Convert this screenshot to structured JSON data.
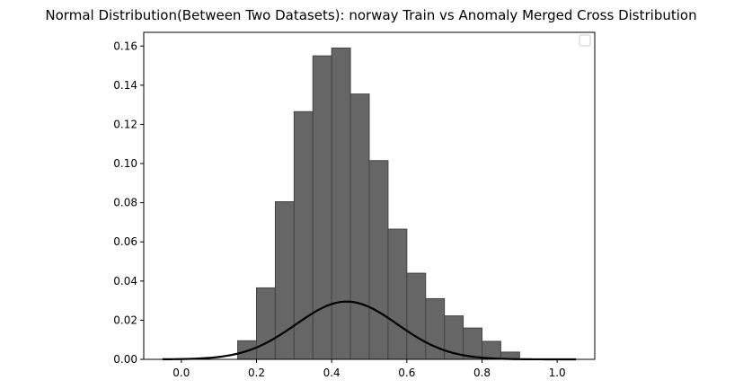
{
  "chart_data": {
    "type": "bar",
    "title": "Normal Distribution(Between Two Datasets): norway Train vs Anomaly Merged Cross Distribution",
    "xlabel": "",
    "ylabel": "",
    "xlim": [
      -0.1,
      1.1
    ],
    "ylim": [
      0,
      0.167
    ],
    "xticks": [
      0.0,
      0.2,
      0.4,
      0.6,
      0.8,
      1.0
    ],
    "xtick_labels": [
      "0.0",
      "0.2",
      "0.4",
      "0.6",
      "0.8",
      "1.0"
    ],
    "yticks": [
      0.0,
      0.02,
      0.04,
      0.06,
      0.08,
      0.1,
      0.12,
      0.14,
      0.16
    ],
    "ytick_labels": [
      "0.00",
      "0.02",
      "0.04",
      "0.06",
      "0.08",
      "0.10",
      "0.12",
      "0.14",
      "0.16"
    ],
    "grid": false,
    "legend": {
      "location": "top-right",
      "entries": []
    },
    "histogram": {
      "bin_edges": [
        0.15,
        0.2,
        0.25,
        0.3,
        0.35,
        0.4,
        0.45,
        0.5,
        0.55,
        0.6,
        0.65,
        0.7,
        0.75,
        0.8,
        0.85,
        0.9
      ],
      "values": [
        0.0095,
        0.0365,
        0.0805,
        0.1265,
        0.155,
        0.159,
        0.1355,
        0.1015,
        0.0665,
        0.044,
        0.031,
        0.0222,
        0.016,
        0.0092,
        0.0037
      ],
      "color": "#666666",
      "edge_color": "#444444"
    },
    "curve": {
      "type": "normal",
      "mean": 0.44,
      "std": 0.135,
      "peak": 0.0295,
      "x_range": [
        -0.05,
        1.05
      ],
      "color": "#000000"
    }
  }
}
